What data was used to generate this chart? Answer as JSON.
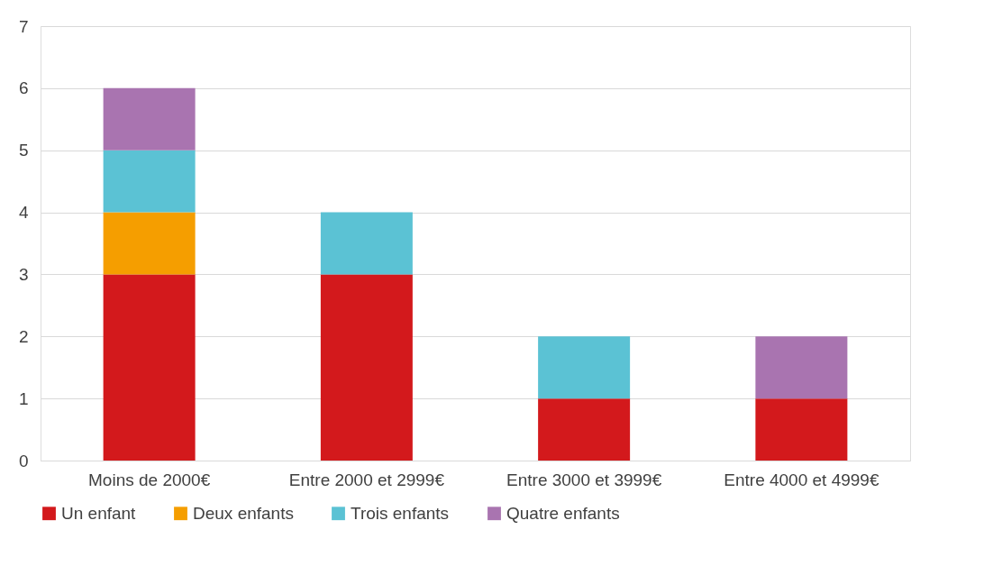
{
  "chart_data": {
    "type": "bar",
    "stacked": true,
    "categories": [
      "Moins de 2000€",
      "Entre 2000 et 2999€",
      "Entre 3000 et 3999€",
      "Entre 4000 et 4999€"
    ],
    "series": [
      {
        "name": "Un enfant",
        "color": "#d3191c",
        "values": [
          3,
          3,
          1,
          1
        ]
      },
      {
        "name": "Deux enfants",
        "color": "#f59e00",
        "values": [
          1,
          null,
          null,
          null
        ]
      },
      {
        "name": "Trois enfants",
        "color": "#5bc2d4",
        "values": [
          1,
          1,
          1,
          null
        ]
      },
      {
        "name": "Quatre enfants",
        "color": "#a974b0",
        "values": [
          1,
          null,
          null,
          1
        ]
      }
    ],
    "ylim": [
      0,
      7
    ],
    "yticks": [
      0,
      1,
      2,
      3,
      4,
      5,
      6,
      7
    ],
    "grid": "y",
    "legend": "bottom"
  }
}
